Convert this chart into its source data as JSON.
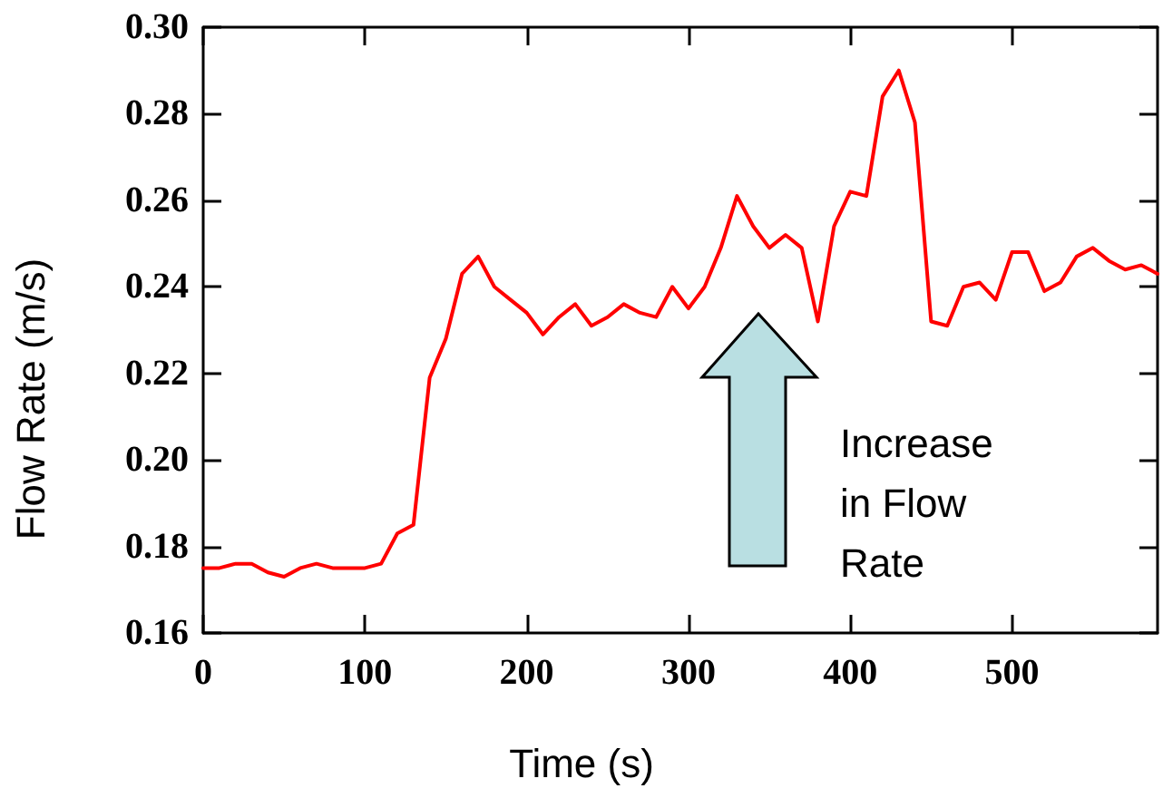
{
  "chart_data": {
    "type": "line",
    "xlabel": "Time (s)",
    "ylabel": "Flow Rate (m/s)",
    "annotations": [
      "Increase\nin Flow\nRate"
    ],
    "x": [
      0,
      10,
      20,
      30,
      40,
      50,
      60,
      70,
      80,
      90,
      100,
      110,
      120,
      130,
      140,
      150,
      160,
      170,
      180,
      190,
      200,
      210,
      220,
      230,
      240,
      250,
      260,
      270,
      280,
      290,
      300,
      310,
      320,
      330,
      340,
      350,
      360,
      370,
      380,
      390,
      400,
      410,
      420,
      430,
      440,
      450,
      460,
      470,
      480,
      490,
      500,
      510,
      520,
      530,
      540,
      550,
      560,
      570,
      580,
      590
    ],
    "series": [
      {
        "color": "#ff0000",
        "values": [
          0.175,
          0.175,
          0.176,
          0.176,
          0.174,
          0.173,
          0.175,
          0.176,
          0.175,
          0.175,
          0.175,
          0.176,
          0.183,
          0.185,
          0.219,
          0.228,
          0.243,
          0.247,
          0.24,
          0.237,
          0.234,
          0.229,
          0.233,
          0.236,
          0.231,
          0.233,
          0.236,
          0.234,
          0.233,
          0.24,
          0.235,
          0.24,
          0.249,
          0.261,
          0.254,
          0.249,
          0.252,
          0.249,
          0.232,
          0.254,
          0.262,
          0.261,
          0.284,
          0.29,
          0.278,
          0.232,
          0.231,
          0.24,
          0.241,
          0.237,
          0.248,
          0.248,
          0.239,
          0.241,
          0.247,
          0.249,
          0.246,
          0.244,
          0.245,
          0.243
        ]
      }
    ],
    "xlim": [
      0,
      590
    ],
    "xticks": [
      0,
      100,
      200,
      300,
      400,
      500
    ],
    "ylim": [
      0.16,
      0.3
    ],
    "yticks": [
      0.16,
      0.18,
      {
        "value": 0.2,
        "label": "0.20"
      },
      0.22,
      0.24,
      0.26,
      0.28,
      {
        "value": 0.3,
        "label": "0.30"
      }
    ],
    "grid": false,
    "marker": "none",
    "line_style": "solid"
  }
}
